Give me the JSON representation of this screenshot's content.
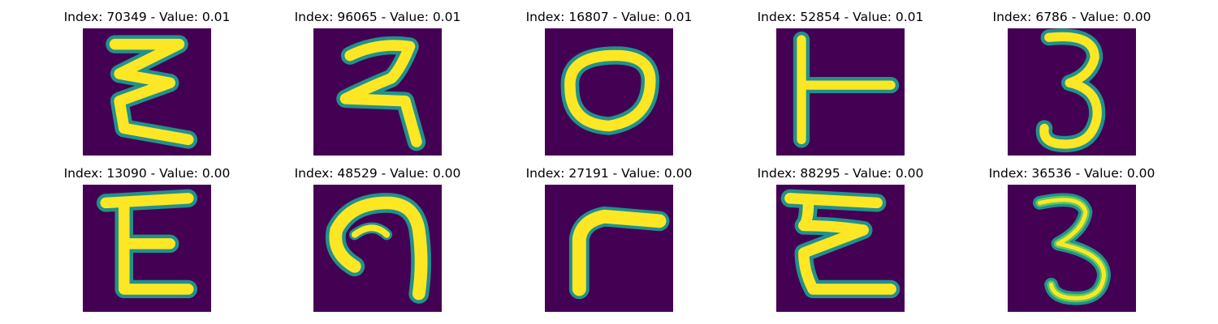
{
  "colors": {
    "background": "#440154",
    "stroke_edge": "#21918c",
    "stroke_mid": "#5ec962",
    "stroke_core": "#fde725"
  },
  "panels": [
    {
      "title": "Index: 70349 - Value: 0.01",
      "glyph": "devanagari-style E shape"
    },
    {
      "title": "Index: 96065 - Value: 0.01",
      "glyph": "hooked 2-like shape"
    },
    {
      "title": "Index: 16807 - Value: 0.01",
      "glyph": "oval loop"
    },
    {
      "title": "Index: 52854 - Value: 0.01",
      "glyph": "T-like shape"
    },
    {
      "title": "Index: 6786 - Value: 0.00",
      "glyph": "digit 3"
    },
    {
      "title": "Index: 13090 - Value: 0.00",
      "glyph": "E shape"
    },
    {
      "title": "Index: 48529 - Value: 0.00",
      "glyph": "hook shape"
    },
    {
      "title": "Index: 27191 - Value: 0.00",
      "glyph": "L-corner shape"
    },
    {
      "title": "Index: 88295 - Value: 0.00",
      "glyph": "E shape"
    },
    {
      "title": "Index: 36536 - Value: 0.00",
      "glyph": "digit 3"
    }
  ]
}
